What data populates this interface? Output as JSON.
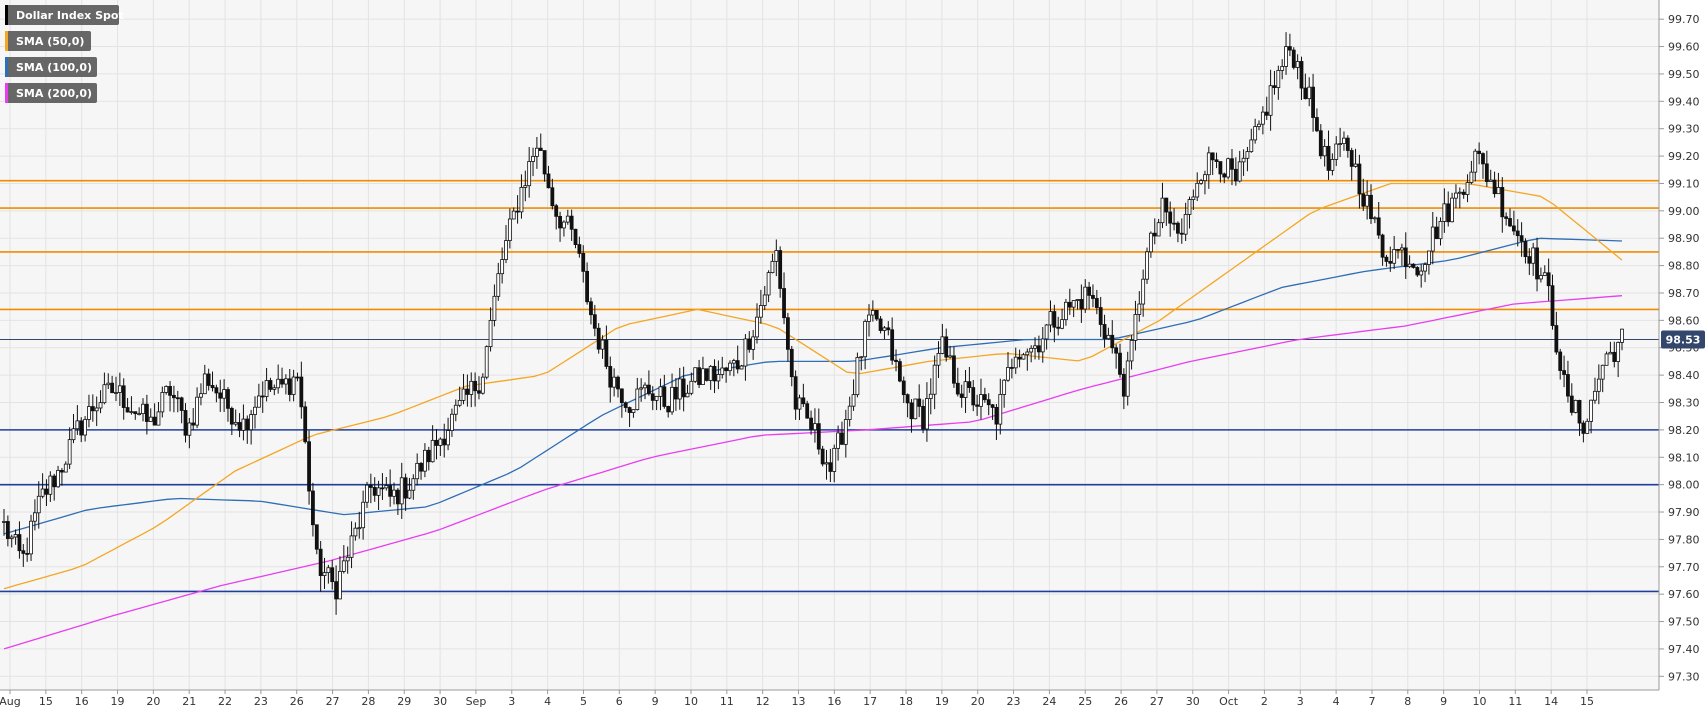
{
  "chart_data": {
    "type": "candlestick",
    "title": "Dollar Index Spot",
    "legend": [
      {
        "name": "Dollar Index Spot",
        "color": "#000000"
      },
      {
        "name": "SMA (50,0)",
        "color": "#f5a623"
      },
      {
        "name": "SMA (100,0)",
        "color": "#2f6db5"
      },
      {
        "name": "SMA (200,0)",
        "color": "#e83ef0"
      }
    ],
    "legend_position": "top-left",
    "y_axis": {
      "position": "right",
      "min": 97.25,
      "max": 99.77,
      "ticks": [
        "97.30",
        "97.40",
        "97.50",
        "97.60",
        "97.70",
        "97.80",
        "97.90",
        "98.00",
        "98.10",
        "98.20",
        "98.30",
        "98.40",
        "98.50",
        "98.60",
        "98.70",
        "98.80",
        "98.90",
        "99.00",
        "99.10",
        "99.20",
        "99.30",
        "99.40",
        "99.50",
        "99.60",
        "99.70"
      ]
    },
    "x_axis": {
      "labels": [
        "Aug",
        "15",
        "16",
        "19",
        "20",
        "21",
        "22",
        "23",
        "26",
        "27",
        "28",
        "29",
        "30",
        "Sep",
        "3",
        "4",
        "5",
        "6",
        "9",
        "10",
        "11",
        "12",
        "13",
        "16",
        "17",
        "18",
        "19",
        "20",
        "23",
        "24",
        "25",
        "26",
        "27",
        "30",
        "Oct",
        "2",
        "3",
        "4",
        "7",
        "8",
        "9",
        "10",
        "11",
        "14",
        "15"
      ]
    },
    "grid": true,
    "current_price": 98.53,
    "current_price_label": "98.53",
    "horizontal_levels": [
      {
        "value": 99.11,
        "color": "#f08c00"
      },
      {
        "value": 99.01,
        "color": "#f08c00"
      },
      {
        "value": 98.85,
        "color": "#f08c00"
      },
      {
        "value": 98.64,
        "color": "#f08c00"
      },
      {
        "value": 98.2,
        "color": "#1f3f9a"
      },
      {
        "value": 98.0,
        "color": "#1f3f9a"
      },
      {
        "value": 97.61,
        "color": "#1f3f9a"
      }
    ],
    "key_closes": [
      97.85,
      97.72,
      97.95,
      98.05,
      98.2,
      98.3,
      98.35,
      98.28,
      98.22,
      98.35,
      98.2,
      98.4,
      98.3,
      98.22,
      98.35,
      98.35,
      98.4,
      97.72,
      97.62,
      97.8,
      98.0,
      97.95,
      98.0,
      98.1,
      98.2,
      98.3,
      98.4,
      98.8,
      99.05,
      99.25,
      99.0,
      98.9,
      98.6,
      98.4,
      98.3,
      98.35,
      98.3,
      98.35,
      98.4,
      98.4,
      98.45,
      98.62,
      98.85,
      98.3,
      98.2,
      98.05,
      98.3,
      98.6,
      98.55,
      98.3,
      98.25,
      98.5,
      98.35,
      98.3,
      98.25,
      98.5,
      98.5,
      98.6,
      98.65,
      98.7,
      98.55,
      98.35,
      98.8,
      99.0,
      98.9,
      99.15,
      99.2,
      99.1,
      99.25,
      99.45,
      99.6,
      99.4,
      99.15,
      99.25,
      99.05,
      98.85,
      98.85,
      98.8,
      98.95,
      99.05,
      99.2,
      99.1,
      98.95,
      98.85,
      98.7,
      98.3,
      98.22,
      98.45,
      98.53
    ],
    "sma50": [
      97.62,
      97.7,
      97.85,
      98.05,
      98.18,
      98.25,
      98.36,
      98.4,
      98.58,
      98.64,
      98.58,
      98.4,
      98.45,
      98.48,
      98.45,
      98.6,
      98.8,
      99.0,
      99.1,
      99.1,
      99.05,
      98.82
    ],
    "sma100": [
      97.82,
      97.91,
      97.95,
      97.94,
      97.89,
      97.92,
      98.05,
      98.25,
      98.4,
      98.45,
      98.45,
      98.5,
      98.53,
      98.53,
      98.6,
      98.72,
      98.78,
      98.82,
      98.9,
      98.89
    ],
    "sma200": [
      97.4,
      97.52,
      97.63,
      97.72,
      97.83,
      97.98,
      98.1,
      98.18,
      98.2,
      98.23,
      98.35,
      98.45,
      98.53,
      98.58,
      98.66,
      98.69
    ]
  }
}
